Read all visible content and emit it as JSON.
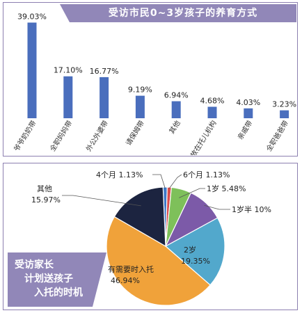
{
  "chart_data": [
    {
      "type": "bar",
      "title": "受访市民0~3岁孩子的养育方式",
      "categories": [
        "爷爷奶奶带",
        "全职妈妈带",
        "外公外婆带",
        "请保姆带",
        "其他",
        "放在托儿机构",
        "亲戚带",
        "全职爸爸带"
      ],
      "values": [
        39.03,
        17.1,
        16.77,
        9.19,
        6.94,
        4.68,
        4.03,
        3.23
      ],
      "value_labels": [
        "39.03%",
        "17.10%",
        "16.77%",
        "9.19%",
        "6.94%",
        "4.68%",
        "4.03%",
        "3.23%"
      ],
      "unit": "%",
      "ylim": [
        0,
        42
      ],
      "bar_color": "#4a6ebd"
    },
    {
      "type": "pie",
      "title": "受访家长计划送孩子入托的时机",
      "title_lines": [
        "受访家长",
        "计划送孩子",
        "入托的时机"
      ],
      "slices": [
        {
          "label": "4个月",
          "value": 1.13,
          "display": "4个月  1.13%",
          "color": "#3c78c8"
        },
        {
          "label": "6个月",
          "value": 1.13,
          "display": "6个月  1.13%",
          "color": "#d94c4c"
        },
        {
          "label": "1岁",
          "value": 5.48,
          "display": "1岁  5.48%",
          "color": "#7ec05a"
        },
        {
          "label": "1岁半",
          "value": 10,
          "display": "1岁半  10%",
          "color": "#7c5aa8"
        },
        {
          "label": "2岁",
          "value": 19.35,
          "display": "2岁",
          "display2": "19.35%",
          "color": "#52a8cc"
        },
        {
          "label": "有需要时入托",
          "value": 46.94,
          "display": "有需要时入托",
          "display2": "46.94%",
          "color": "#f0a23a"
        },
        {
          "label": "其他",
          "value": 15.97,
          "display": "其他",
          "display2": "15.97%",
          "color": "#1c2440"
        }
      ]
    }
  ]
}
